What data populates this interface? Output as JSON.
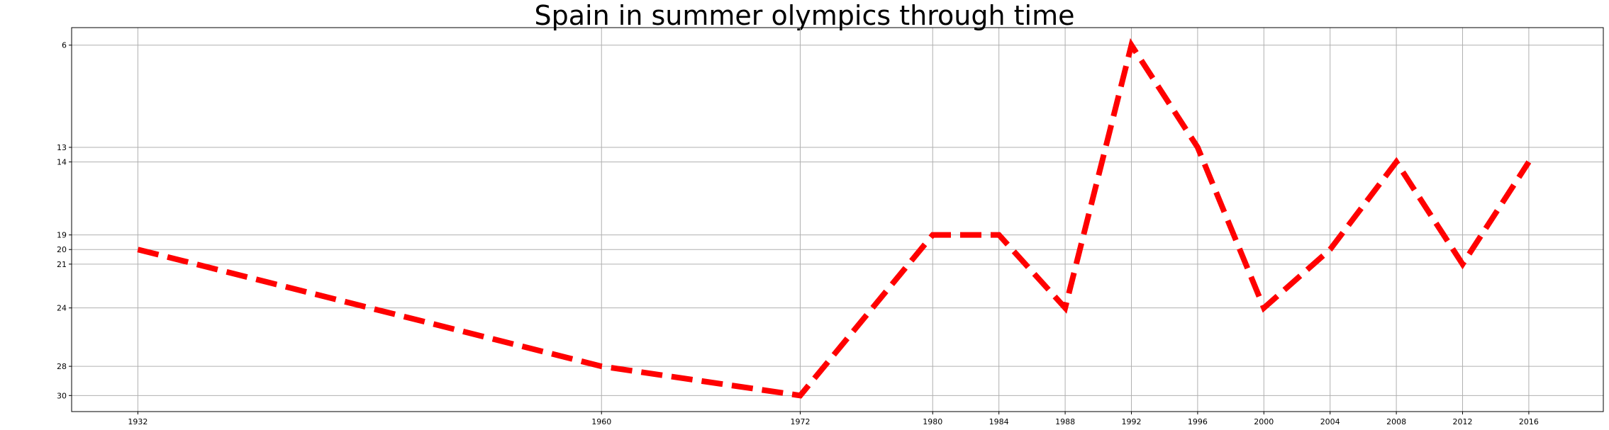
{
  "chart_data": {
    "type": "line",
    "title": "Spain in summer olympics through time",
    "xlabel": "",
    "ylabel": "",
    "x": [
      1932,
      1960,
      1972,
      1980,
      1984,
      1988,
      1992,
      1996,
      2000,
      2004,
      2008,
      2012,
      2016
    ],
    "series": [
      {
        "values": [
          20,
          28,
          30,
          19,
          19,
          24,
          6,
          13,
          24,
          20,
          14,
          21,
          14
        ]
      }
    ],
    "xticks": [
      1932,
      1960,
      1972,
      1980,
      1984,
      1988,
      1992,
      1996,
      2000,
      2004,
      2008,
      2012,
      2016
    ],
    "yticks": [
      6,
      13,
      14,
      19,
      20,
      21,
      24,
      28,
      30
    ],
    "xlim": [
      1928,
      2020.5
    ],
    "ylim": [
      31.1,
      4.8
    ],
    "y_inverted": true,
    "grid": true,
    "line_color": "#ff0000",
    "line_style": "dashed"
  }
}
